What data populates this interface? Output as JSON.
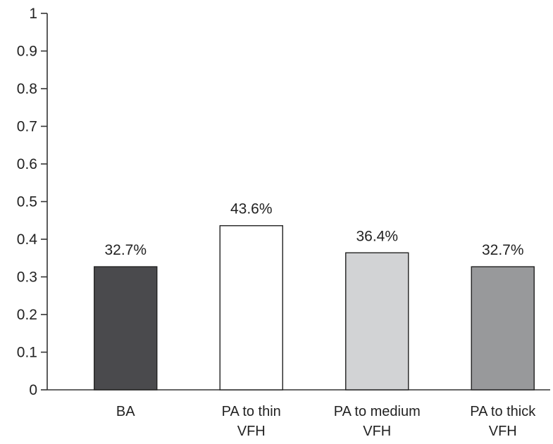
{
  "chart_data": {
    "type": "bar",
    "categories": [
      [
        "BA"
      ],
      [
        "PA to thin",
        "VFH"
      ],
      [
        "PA to medium",
        "VFH"
      ],
      [
        "PA to thick",
        "VFH"
      ]
    ],
    "values": [
      0.327,
      0.436,
      0.364,
      0.327
    ],
    "data_labels": [
      "32.7%",
      "43.6%",
      "36.4%",
      "32.7%"
    ],
    "bar_colors": [
      "#4a4a4d",
      "#ffffff",
      "#d2d3d5",
      "#98999b"
    ],
    "ylim": [
      0,
      1
    ],
    "yticks": [
      0,
      0.1,
      0.2,
      0.3,
      0.4,
      0.5,
      0.6,
      0.7,
      0.8,
      0.9,
      1
    ],
    "ytick_labels": [
      "0",
      "0.1",
      "0.2",
      "0.3",
      "0.4",
      "0.5",
      "0.6",
      "0.7",
      "0.8",
      "0.9",
      "1"
    ],
    "title": "",
    "xlabel": "",
    "ylabel": "",
    "grid": false,
    "legend": "none"
  }
}
